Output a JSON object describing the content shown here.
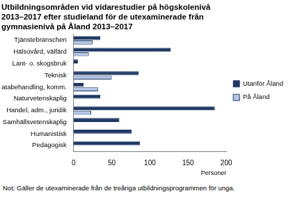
{
  "chart_data": {
    "type": "bar",
    "orientation": "horizontal",
    "title": [
      "Utbildningsområden vid vidarestudier på högskolenivå",
      "2013–2017 efter studieland för de utexaminerade från",
      "gymnasienivå på Åland 2013–2017"
    ],
    "x_label": "Personer",
    "annotations": [
      "Not: Gäller de utexaminerade från de treåriga utbildningsprogrammen för unga."
    ],
    "categories": [
      "Tjänstebranschen",
      "Hälsovård, välfärd",
      "Lant- o. skogsbruk",
      "Teknisk",
      "Databehandling, komm.",
      "Naturvetenskaplig",
      "Handel, adm., juridik",
      "Samhällsvetenskaplig",
      "Humanistisk",
      "Pedagogisk"
    ],
    "series": [
      {
        "name": "Utanför Åland",
        "color": "#1f3864",
        "values": [
          35,
          127,
          6,
          85,
          13,
          35,
          185,
          60,
          76,
          87
        ]
      },
      {
        "name": "På Åland",
        "color": "#b4c7e7",
        "values": [
          25,
          20,
          0,
          50,
          32,
          0,
          23,
          0,
          0,
          0
        ]
      }
    ],
    "xlim": [
      0,
      200
    ],
    "xticks": [
      0,
      50,
      100,
      150,
      200
    ],
    "grid": false,
    "legend": "right"
  }
}
